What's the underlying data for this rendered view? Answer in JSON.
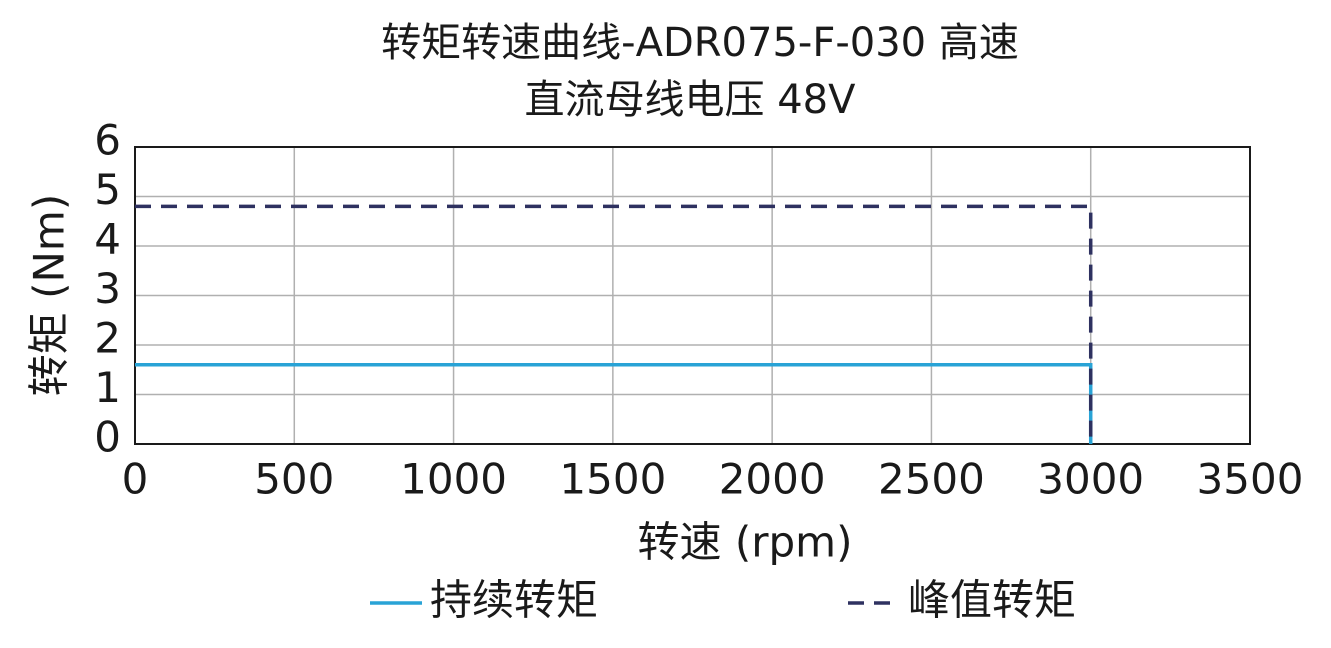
{
  "chart_data": {
    "type": "line",
    "title": "转矩转速曲线-ADR075-F-030 高速",
    "subtitle": "直流母线电压 48V",
    "xlabel": "转速 (rpm)",
    "ylabel": "转矩 (Nm)",
    "xlim": [
      0,
      3500
    ],
    "xticks": [
      0,
      500,
      1000,
      1500,
      2000,
      2500,
      3000,
      3500
    ],
    "ylim": [
      0,
      6
    ],
    "yticks": [
      0,
      1,
      2,
      3,
      4,
      5,
      6
    ],
    "grid": true,
    "legend": "bottom",
    "series": [
      {
        "name": "持续转矩",
        "color": "#29a3d6",
        "linestyle": "solid",
        "x": [
          0,
          3000,
          3000
        ],
        "values": [
          1.6,
          1.6,
          0
        ]
      },
      {
        "name": "峰值转矩",
        "color": "#2e3160",
        "linestyle": "dashed",
        "x": [
          0,
          3000,
          3000
        ],
        "values": [
          4.8,
          4.8,
          0
        ]
      }
    ]
  }
}
